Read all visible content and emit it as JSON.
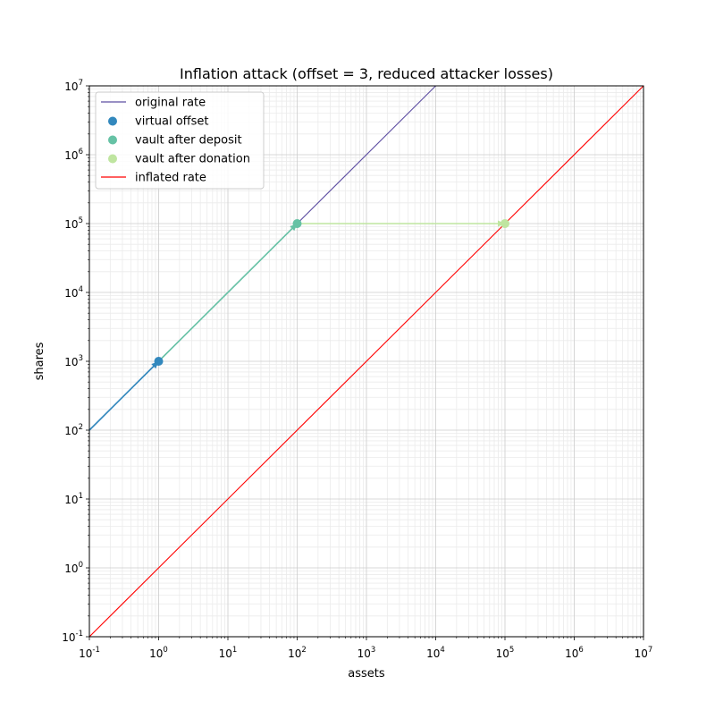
{
  "chart_data": {
    "type": "line",
    "title": "Inflation attack (offset = 3, reduced attacker losses)",
    "xlabel": "assets",
    "ylabel": "shares",
    "xscale": "log",
    "yscale": "log",
    "xlim": [
      0.1,
      10000000
    ],
    "ylim": [
      0.1,
      10000000
    ],
    "grid": "major and minor",
    "legend_position": "top-left",
    "x_ticks": [
      {
        "exp": "-1"
      },
      {
        "exp": "0"
      },
      {
        "exp": "1"
      },
      {
        "exp": "2"
      },
      {
        "exp": "3"
      },
      {
        "exp": "4"
      },
      {
        "exp": "5"
      },
      {
        "exp": "6"
      },
      {
        "exp": "7"
      }
    ],
    "y_ticks": [
      {
        "exp": "-1"
      },
      {
        "exp": "0"
      },
      {
        "exp": "1"
      },
      {
        "exp": "2"
      },
      {
        "exp": "3"
      },
      {
        "exp": "4"
      },
      {
        "exp": "5"
      },
      {
        "exp": "6"
      },
      {
        "exp": "7"
      }
    ],
    "tick_base": "10",
    "lines": [
      {
        "name": "original rate",
        "color": "#5e4fa2",
        "x": [
          0.1,
          10000
        ],
        "y": [
          100,
          10000000
        ]
      },
      {
        "name": "inflated rate",
        "color": "#ff0000",
        "x": [
          0.1,
          10000000
        ],
        "y": [
          0.1,
          10000000
        ]
      }
    ],
    "points": [
      {
        "name": "virtual offset",
        "color": "#3288bd",
        "x": 1,
        "y": 1000
      },
      {
        "name": "vault after deposit",
        "color": "#66c2a5",
        "x": 100,
        "y": 100000
      },
      {
        "name": "vault after donation",
        "color": "#bfe5a0",
        "x": 100000,
        "y": 100000
      }
    ],
    "arrows": [
      {
        "color": "#3288bd",
        "from": [
          0.1,
          100
        ],
        "to": [
          1,
          1000
        ]
      },
      {
        "color": "#66c2a5",
        "from": [
          1,
          1000
        ],
        "to": [
          100,
          100000
        ]
      },
      {
        "color": "#bfe5a0",
        "from": [
          100,
          100000
        ],
        "to": [
          100000,
          100000
        ]
      }
    ]
  }
}
